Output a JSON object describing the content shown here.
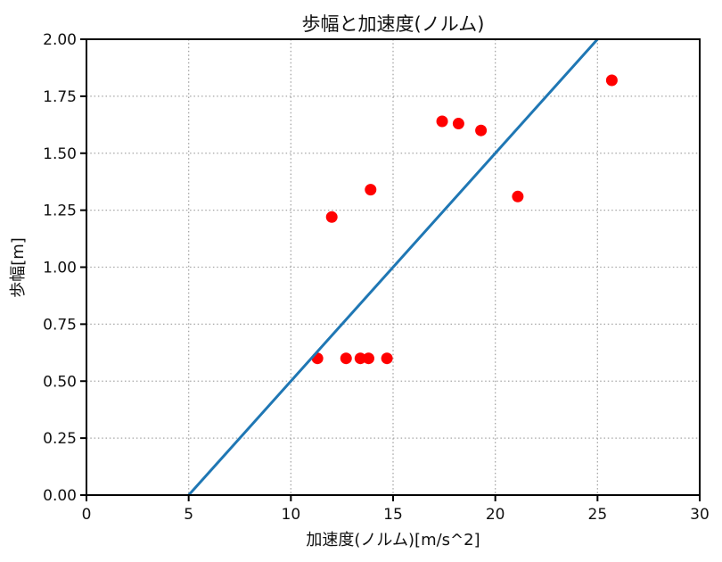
{
  "chart_data": {
    "type": "scatter",
    "title": "歩幅と加速度(ノルム)",
    "xlabel": "加速度(ノルム)[m/s^2]",
    "ylabel": "歩幅[m]",
    "xlim": [
      0,
      30
    ],
    "ylim": [
      0,
      2.0
    ],
    "xticks": [
      0,
      5,
      10,
      15,
      20,
      25,
      30
    ],
    "xtick_labels": [
      "0",
      "5",
      "10",
      "15",
      "20",
      "25",
      "30"
    ],
    "yticks": [
      0,
      0.25,
      0.5,
      0.75,
      1.0,
      1.25,
      1.5,
      1.75,
      2.0
    ],
    "ytick_labels": [
      "0.00",
      "0.25",
      "0.50",
      "0.75",
      "1.00",
      "1.25",
      "1.50",
      "1.75",
      "2.00"
    ],
    "grid": {
      "visible": true,
      "style": "dotted",
      "color": "#a6a6a6"
    },
    "legend": "none",
    "colors": {
      "scatter": "#ff0000",
      "line": "#1f77b4"
    },
    "series": [
      {
        "name": "scatter-points",
        "type": "scatter",
        "color": "#ff0000",
        "points": [
          [
            11.3,
            0.6
          ],
          [
            12.7,
            0.6
          ],
          [
            13.4,
            0.6
          ],
          [
            13.8,
            0.6
          ],
          [
            14.7,
            0.6
          ],
          [
            12.0,
            1.22
          ],
          [
            13.9,
            1.34
          ],
          [
            17.4,
            1.64
          ],
          [
            18.2,
            1.63
          ],
          [
            19.3,
            1.6
          ],
          [
            21.1,
            1.31
          ],
          [
            25.7,
            1.82
          ]
        ]
      },
      {
        "name": "trend-line",
        "type": "line",
        "color": "#1f77b4",
        "points": [
          [
            5.0,
            0.0
          ],
          [
            25.1,
            2.01
          ]
        ]
      }
    ]
  }
}
